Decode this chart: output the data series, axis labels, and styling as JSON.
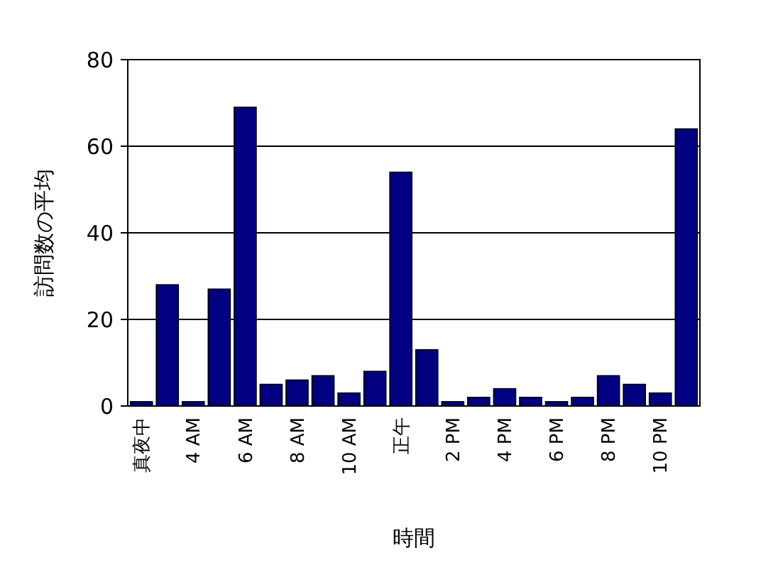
{
  "chart_data": {
    "type": "bar",
    "xlabel": "時間",
    "ylabel": "訪問数の平均",
    "categories": [
      "真夜中",
      null,
      "4 AM",
      null,
      "6 AM",
      null,
      "8 AM",
      null,
      "10 AM",
      null,
      "正午",
      null,
      "2 PM",
      null,
      "4 PM",
      null,
      "6 PM",
      null,
      "8 PM",
      null,
      "10 PM",
      null
    ],
    "values": [
      1,
      28,
      1,
      27,
      69,
      5,
      6,
      7,
      3,
      8,
      54,
      13,
      1,
      2,
      4,
      2,
      1,
      2,
      7,
      5,
      3,
      64
    ],
    "color": "#000080",
    "ylim": [
      0,
      80
    ],
    "yticks": [
      0,
      20,
      40,
      60,
      80
    ],
    "grid": "y"
  }
}
